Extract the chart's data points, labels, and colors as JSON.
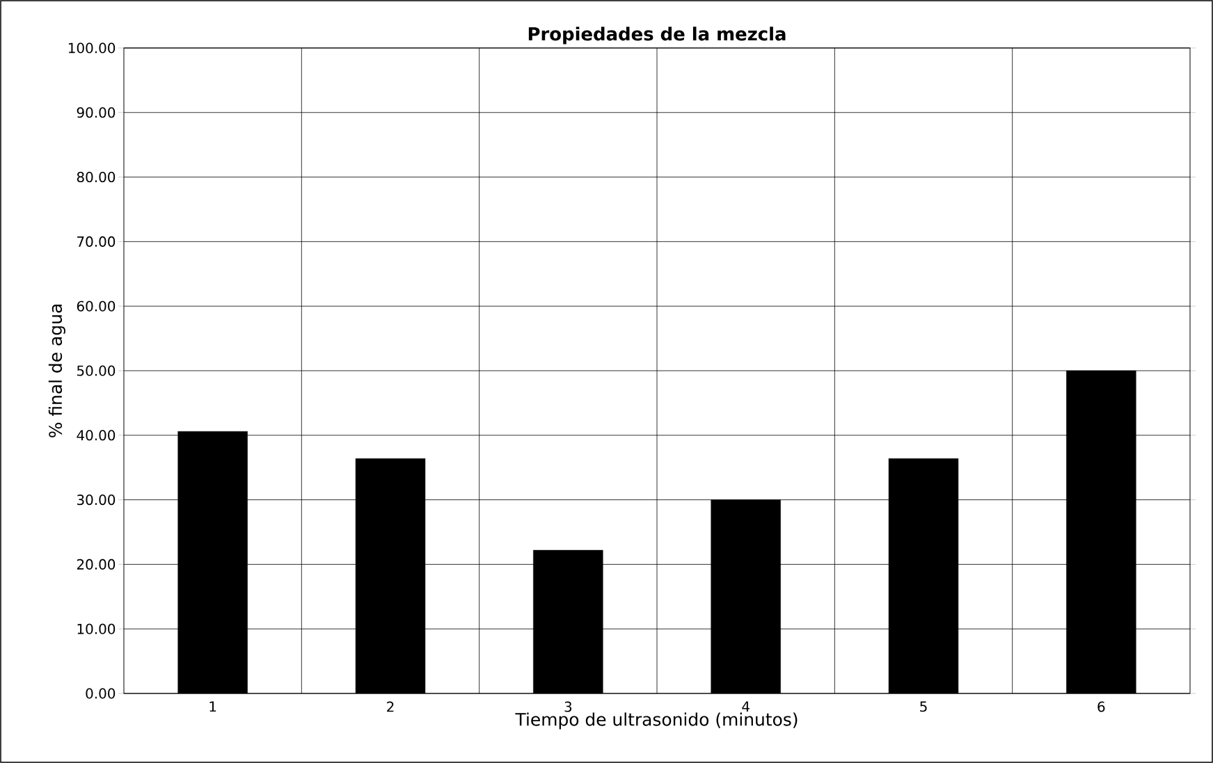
{
  "chart_data": {
    "type": "bar",
    "title": "Propiedades de la mezcla",
    "xlabel": "Tiempo de ultrasonido (minutos)",
    "ylabel": "% final de agua",
    "categories": [
      "1",
      "2",
      "3",
      "4",
      "5",
      "6"
    ],
    "values": [
      40.6,
      36.4,
      22.2,
      30.0,
      36.4,
      50.0
    ],
    "color": "#000000",
    "ylim": [
      0,
      100
    ],
    "yticks": [
      {
        "value": 0,
        "label": "0.00"
      },
      {
        "value": 10,
        "label": "10.00"
      },
      {
        "value": 20,
        "label": "20.00"
      },
      {
        "value": 30,
        "label": "30.00"
      },
      {
        "value": 40,
        "label": "40.00"
      },
      {
        "value": 50,
        "label": "50.00"
      },
      {
        "value": 60,
        "label": "60.00"
      },
      {
        "value": 70,
        "label": "70.00"
      },
      {
        "value": 80,
        "label": "80.00"
      },
      {
        "value": 90,
        "label": "90.00"
      },
      {
        "value": 100,
        "label": "100.00"
      }
    ],
    "grid": true
  }
}
